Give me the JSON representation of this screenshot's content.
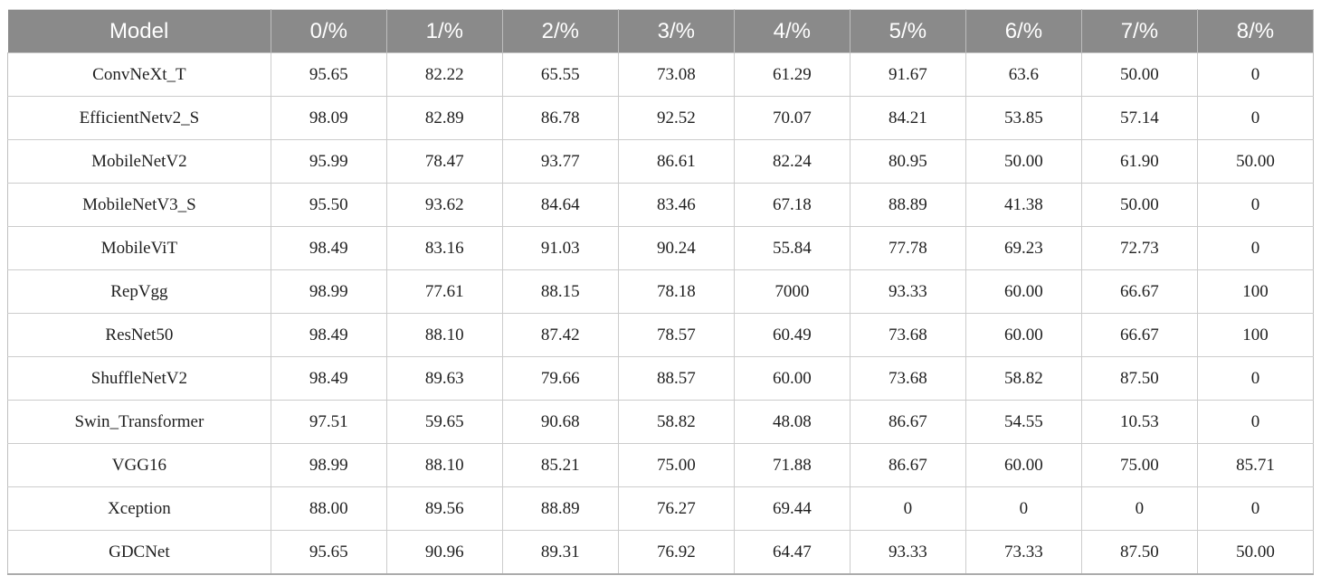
{
  "colors": {
    "header_bg": "#8a8a8a",
    "header_text": "#ffffff",
    "body_text": "#1f1f1f",
    "border_inner": "#cccccc",
    "border_outer": "#ababab"
  },
  "table": {
    "columns": [
      "Model",
      "0/%",
      "1/%",
      "2/%",
      "3/%",
      "4/%",
      "5/%",
      "6/%",
      "7/%",
      "8/%"
    ],
    "rows": [
      {
        "model": "ConvNeXt_T",
        "values": [
          "95.65",
          "82.22",
          "65.55",
          "73.08",
          "61.29",
          "91.67",
          "63.6",
          "50.00",
          "0"
        ]
      },
      {
        "model": "EfficientNetv2_S",
        "values": [
          "98.09",
          "82.89",
          "86.78",
          "92.52",
          "70.07",
          "84.21",
          "53.85",
          "57.14",
          "0"
        ]
      },
      {
        "model": "MobileNetV2",
        "values": [
          "95.99",
          "78.47",
          "93.77",
          "86.61",
          "82.24",
          "80.95",
          "50.00",
          "61.90",
          "50.00"
        ]
      },
      {
        "model": "MobileNetV3_S",
        "values": [
          "95.50",
          "93.62",
          "84.64",
          "83.46",
          "67.18",
          "88.89",
          "41.38",
          "50.00",
          "0"
        ]
      },
      {
        "model": "MobileViT",
        "values": [
          "98.49",
          "83.16",
          "91.03",
          "90.24",
          "55.84",
          "77.78",
          "69.23",
          "72.73",
          "0"
        ]
      },
      {
        "model": "RepVgg",
        "values": [
          "98.99",
          "77.61",
          "88.15",
          "78.18",
          "7000",
          "93.33",
          "60.00",
          "66.67",
          "100"
        ]
      },
      {
        "model": "ResNet50",
        "values": [
          "98.49",
          "88.10",
          "87.42",
          "78.57",
          "60.49",
          "73.68",
          "60.00",
          "66.67",
          "100"
        ]
      },
      {
        "model": "ShuffleNetV2",
        "values": [
          "98.49",
          "89.63",
          "79.66",
          "88.57",
          "60.00",
          "73.68",
          "58.82",
          "87.50",
          "0"
        ]
      },
      {
        "model": "Swin_Transformer",
        "values": [
          "97.51",
          "59.65",
          "90.68",
          "58.82",
          "48.08",
          "86.67",
          "54.55",
          "10.53",
          "0"
        ]
      },
      {
        "model": "VGG16",
        "values": [
          "98.99",
          "88.10",
          "85.21",
          "75.00",
          "71.88",
          "86.67",
          "60.00",
          "75.00",
          "85.71"
        ]
      },
      {
        "model": "Xception",
        "values": [
          "88.00",
          "89.56",
          "88.89",
          "76.27",
          "69.44",
          "0",
          "0",
          "0",
          "0"
        ]
      },
      {
        "model": "GDCNet",
        "values": [
          "95.65",
          "90.96",
          "89.31",
          "76.92",
          "64.47",
          "93.33",
          "73.33",
          "87.50",
          "50.00"
        ]
      }
    ]
  }
}
